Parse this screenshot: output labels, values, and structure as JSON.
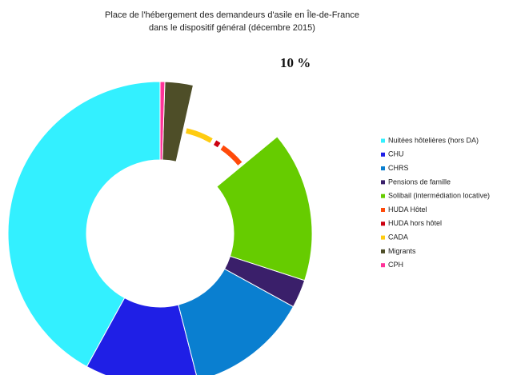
{
  "chart_data": {
    "type": "donut",
    "title": [
      "Place de l'hébergement des demandeurs d'asile en Île-de-France",
      "dans le dispositif général (décembre 2015)"
    ],
    "categories": [
      "Nuitées hôtelières (hors DA)",
      "CHU",
      "CHRS",
      "Pensions de famille",
      "Solibail (intermédiation locative)",
      "HUDA Hôtel",
      "HUDA hors hôtel",
      "CADA",
      "Migrants",
      "CPH"
    ],
    "values": [
      42,
      12,
      13,
      3,
      16,
      4.5,
      1,
      5,
      3,
      0.5
    ],
    "colors": [
      "#33f0ff",
      "#1f1fe6",
      "#0a7fd0",
      "#3a1f6a",
      "#66cc00",
      "#ff4a0a",
      "#cc0010",
      "#ffcc11",
      "#4e4e28",
      "#ff3399"
    ],
    "exploded": [
      5,
      6,
      7
    ],
    "direction": "counterclockwise",
    "annotation": "10 %",
    "legend": "right"
  }
}
